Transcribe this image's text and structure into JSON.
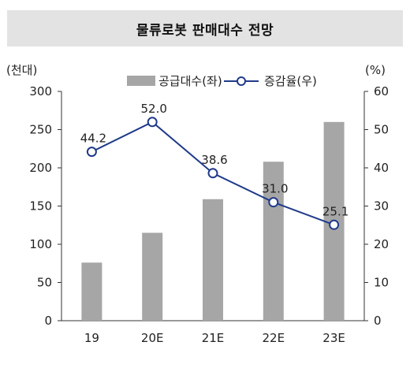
{
  "chart_data": {
    "type": "bar+line",
    "title": "물류로봇 판매대수 전망",
    "categories": [
      "19",
      "20E",
      "21E",
      "22E",
      "23E"
    ],
    "left_axis": {
      "unit_label": "(천대)",
      "ylim": [
        0,
        300
      ],
      "ticks": [
        "0",
        "50",
        "100",
        "150",
        "200",
        "250",
        "300"
      ]
    },
    "right_axis": {
      "unit_label": "(%)",
      "ylim": [
        0,
        60
      ],
      "ticks": [
        "0",
        "10",
        "20",
        "30",
        "40",
        "50",
        "60"
      ]
    },
    "series": [
      {
        "name": "공급대수(좌)",
        "type": "bar",
        "axis": "left",
        "color": "#a6a6a6",
        "values": [
          76,
          115,
          159,
          208,
          260
        ]
      },
      {
        "name": "증감율(우)",
        "type": "line",
        "axis": "right",
        "color": "#1f3a8a",
        "values": [
          44.2,
          52.0,
          38.6,
          31.0,
          25.1
        ],
        "labels": [
          "44.2",
          "52.0",
          "38.6",
          "31.0",
          "25.1"
        ]
      }
    ],
    "legend_position": "top"
  }
}
